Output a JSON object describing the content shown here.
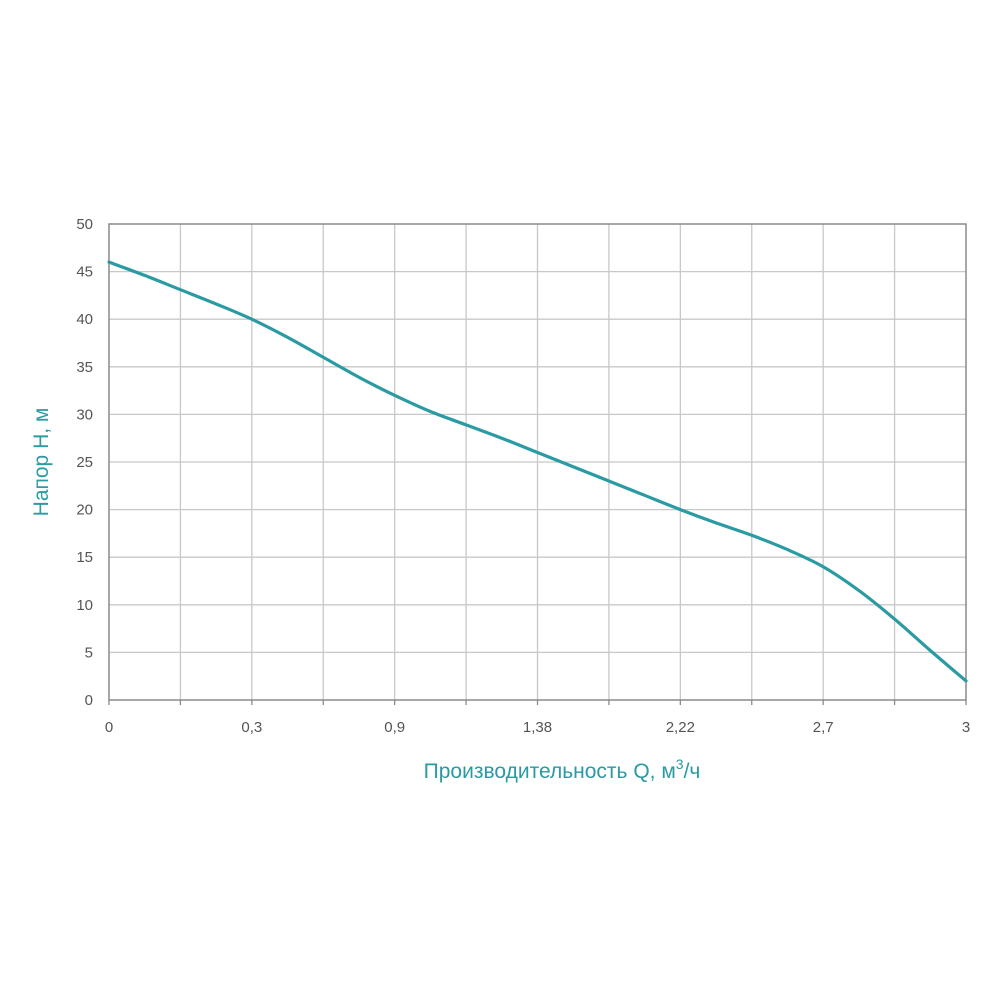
{
  "chart_data": {
    "type": "line",
    "xlabel": "Производительность Q, м",
    "xlabel_sup": "3",
    "xlabel_suffix": "/ч",
    "ylabel": "Напор H, м",
    "x_tick_labels": [
      "0",
      "",
      "0,3",
      "",
      "0,9",
      "",
      "1,38",
      "",
      "2,22",
      "",
      "2,7",
      "",
      "3"
    ],
    "y_ticks": [
      "0",
      "5",
      "10",
      "15",
      "20",
      "25",
      "30",
      "35",
      "40",
      "45",
      "50"
    ],
    "ylim": [
      0,
      50
    ],
    "grid": true,
    "colors": {
      "curve": "#2a9aa3",
      "label": "#2a9aa3",
      "grid": "#c8c8c8",
      "frame": "#8a8a8a"
    },
    "series": [
      {
        "tick_index": [
          0,
          0.5,
          1,
          1.5,
          2,
          2.5,
          3,
          3.5,
          4,
          4.5,
          5,
          5.5,
          6,
          6.5,
          7,
          7.5,
          8,
          8.5,
          9,
          9.5,
          10,
          10.5,
          11,
          11.5,
          12
        ],
        "values": [
          46,
          44.6,
          43.1,
          41.6,
          40,
          38.1,
          36,
          33.9,
          32,
          30.3,
          28.9,
          27.5,
          26,
          24.5,
          23,
          21.5,
          20,
          18.6,
          17.3,
          15.8,
          14,
          11.5,
          8.5,
          5.2,
          2
        ]
      }
    ]
  }
}
